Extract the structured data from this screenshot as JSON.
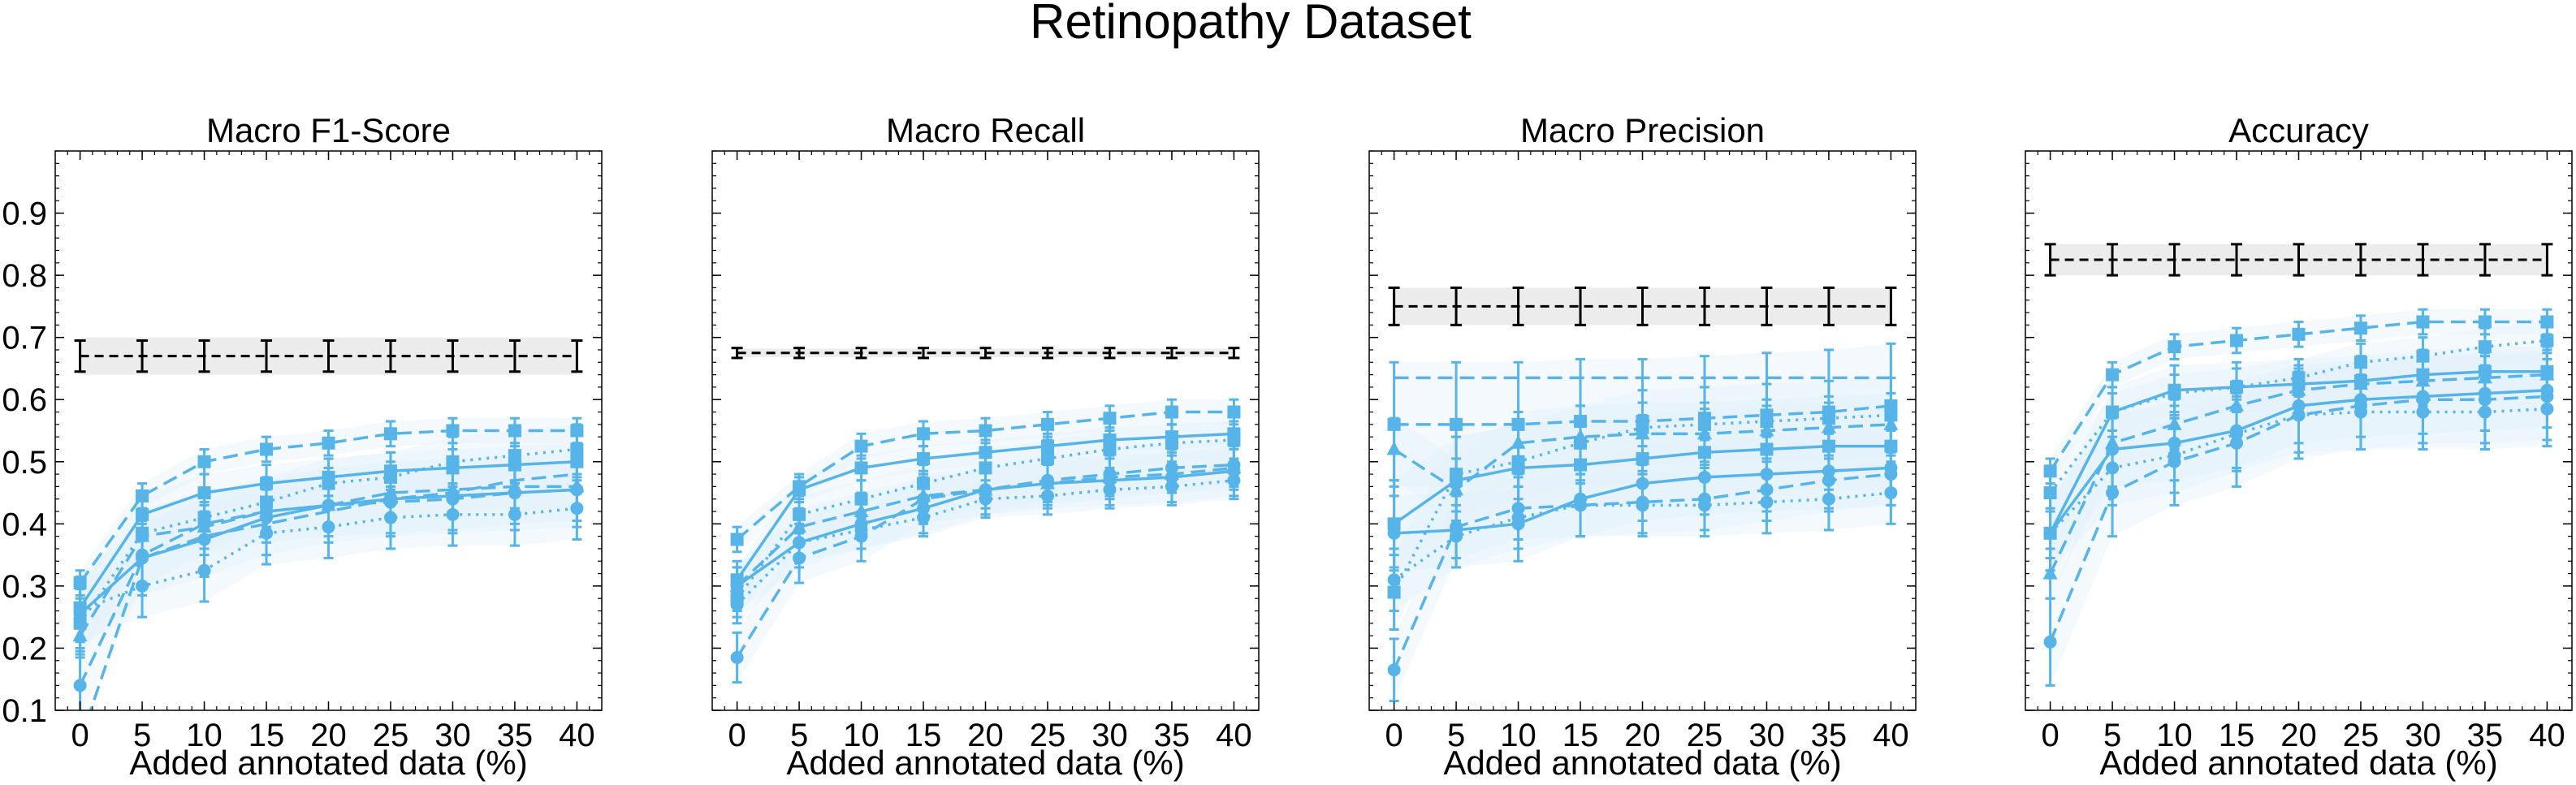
{
  "figure": {
    "title": "Retinopathy Dataset"
  },
  "colors": {
    "series": "#56b4e9",
    "band": "#e4f2fb",
    "reference": "#000000",
    "reference_band": "#ececec"
  },
  "chart_data": [
    {
      "type": "line",
      "title": "Macro F1-Score",
      "xlabel": "Added annotated data (%)",
      "ylabel": "",
      "x": [
        0,
        5,
        10,
        15,
        20,
        25,
        30,
        35,
        40
      ],
      "xlim": [
        -2,
        42
      ],
      "ylim": [
        0.1,
        1.0
      ],
      "yticks": [
        "0.1",
        "0.2",
        "0.3",
        "0.4",
        "0.5",
        "0.6",
        "0.7",
        "0.8",
        "0.9"
      ],
      "xticks": [
        "0",
        "5",
        "10",
        "15",
        "20",
        "25",
        "30",
        "35",
        "40"
      ],
      "reference": {
        "values": [
          0.67,
          0.67,
          0.67,
          0.67,
          0.67,
          0.67,
          0.67,
          0.67,
          0.67
        ],
        "err": 0.025,
        "band": [
          0.64,
          0.7
        ]
      },
      "series": [
        {
          "style": "dashed",
          "marker": "square",
          "values": [
            0.305,
            0.445,
            0.5,
            0.52,
            0.53,
            0.545,
            0.55,
            0.55,
            0.55
          ],
          "err": 0.02
        },
        {
          "style": "solid",
          "marker": "square",
          "values": [
            0.265,
            0.415,
            0.45,
            0.465,
            0.475,
            0.485,
            0.49,
            0.495,
            0.5
          ],
          "err": 0.03
        },
        {
          "style": "dotted",
          "marker": "square",
          "values": [
            0.24,
            0.385,
            0.41,
            0.435,
            0.465,
            0.475,
            0.5,
            0.51,
            0.52
          ],
          "err": 0.04
        },
        {
          "style": "dashed",
          "marker": "triangle",
          "values": [
            0.22,
            0.38,
            0.395,
            0.42,
            0.43,
            0.45,
            0.455,
            0.46,
            0.46
          ],
          "err": 0.035
        },
        {
          "style": "solid",
          "marker": "circle",
          "values": [
            0.255,
            0.345,
            0.375,
            0.41,
            0.43,
            0.44,
            0.445,
            0.45,
            0.455
          ],
          "err": 0.06
        },
        {
          "style": "dashed",
          "marker": "circle",
          "values": [
            0.14,
            0.35,
            0.4,
            0.42,
            0.43,
            0.435,
            0.44,
            0.45,
            0.455
          ],
          "err": 0.05
        },
        {
          "style": "dotted",
          "marker": "circle",
          "values": [
            0.26,
            0.3,
            0.325,
            0.385,
            0.395,
            0.41,
            0.415,
            0.415,
            0.425
          ],
          "err": 0.05
        },
        {
          "style": "dashed",
          "marker": "none",
          "values": [
            0.05,
            0.345,
            0.38,
            0.4,
            0.42,
            0.44,
            0.45,
            0.47,
            0.48
          ],
          "err": 0.0
        }
      ]
    },
    {
      "type": "line",
      "title": "Macro Recall",
      "xlabel": "Added annotated data (%)",
      "ylabel": "",
      "x": [
        0,
        5,
        10,
        15,
        20,
        25,
        30,
        35,
        40
      ],
      "xlim": [
        -2,
        42
      ],
      "ylim": [
        0.1,
        1.0
      ],
      "yticks": [],
      "xticks": [
        "0",
        "5",
        "10",
        "15",
        "20",
        "25",
        "30",
        "35",
        "40"
      ],
      "reference": {
        "values": [
          0.675,
          0.675,
          0.675,
          0.675,
          0.675,
          0.675,
          0.675,
          0.675,
          0.675
        ],
        "err": 0.008,
        "band": [
          0.668,
          0.682
        ]
      },
      "series": [
        {
          "style": "dashed",
          "marker": "square",
          "values": [
            0.375,
            0.46,
            0.525,
            0.545,
            0.55,
            0.56,
            0.57,
            0.58,
            0.58
          ],
          "err": 0.02
        },
        {
          "style": "solid",
          "marker": "square",
          "values": [
            0.31,
            0.455,
            0.49,
            0.505,
            0.515,
            0.525,
            0.535,
            0.54,
            0.545
          ],
          "err": 0.02
        },
        {
          "style": "dotted",
          "marker": "square",
          "values": [
            0.28,
            0.415,
            0.44,
            0.465,
            0.49,
            0.505,
            0.52,
            0.53,
            0.535
          ],
          "err": 0.03
        },
        {
          "style": "dashed",
          "marker": "triangle",
          "values": [
            0.3,
            0.395,
            0.42,
            0.445,
            0.455,
            0.465,
            0.475,
            0.48,
            0.49
          ],
          "err": 0.03
        },
        {
          "style": "solid",
          "marker": "circle",
          "values": [
            0.3,
            0.37,
            0.4,
            0.425,
            0.455,
            0.465,
            0.47,
            0.475,
            0.485
          ],
          "err": 0.04
        },
        {
          "style": "dashed",
          "marker": "circle",
          "values": [
            0.185,
            0.345,
            0.38,
            0.44,
            0.455,
            0.47,
            0.48,
            0.49,
            0.495
          ],
          "err": 0.04
        },
        {
          "style": "dotted",
          "marker": "circle",
          "values": [
            0.27,
            0.37,
            0.39,
            0.41,
            0.44,
            0.445,
            0.455,
            0.46,
            0.47
          ],
          "err": 0.03
        }
      ]
    },
    {
      "type": "line",
      "title": "Macro Precision",
      "xlabel": "Added annotated data (%)",
      "ylabel": "",
      "x": [
        0,
        5,
        10,
        15,
        20,
        25,
        30,
        35,
        40
      ],
      "xlim": [
        -2,
        42
      ],
      "ylim": [
        0.1,
        1.0
      ],
      "yticks": [],
      "xticks": [
        "0",
        "5",
        "10",
        "15",
        "20",
        "25",
        "30",
        "35",
        "40"
      ],
      "reference": {
        "values": [
          0.75,
          0.75,
          0.75,
          0.75,
          0.75,
          0.75,
          0.75,
          0.75,
          0.75
        ],
        "err": 0.03,
        "band": [
          0.72,
          0.78
        ]
      },
      "series": [
        {
          "style": "dashed",
          "marker": "square",
          "values": [
            0.56,
            0.56,
            0.56,
            0.565,
            0.565,
            0.57,
            0.575,
            0.58,
            0.59
          ],
          "err": 0.1
        },
        {
          "style": "dashed",
          "marker": "none",
          "values": [
            0.635,
            0.635,
            0.635,
            0.635,
            0.635,
            0.635,
            0.635,
            0.635,
            0.635
          ],
          "err": 0.0
        },
        {
          "style": "solid",
          "marker": "square",
          "values": [
            0.4,
            0.47,
            0.49,
            0.495,
            0.505,
            0.515,
            0.52,
            0.525,
            0.525
          ],
          "err": 0.07
        },
        {
          "style": "dotted",
          "marker": "square",
          "values": [
            0.29,
            0.48,
            0.5,
            0.53,
            0.555,
            0.56,
            0.565,
            0.57,
            0.575
          ],
          "err": 0.06
        },
        {
          "style": "dashed",
          "marker": "triangle",
          "values": [
            0.52,
            0.455,
            0.53,
            0.54,
            0.545,
            0.545,
            0.55,
            0.555,
            0.56
          ],
          "err": 0.05
        },
        {
          "style": "solid",
          "marker": "circle",
          "values": [
            0.385,
            0.39,
            0.4,
            0.44,
            0.465,
            0.475,
            0.48,
            0.485,
            0.49
          ],
          "err": 0.06
        },
        {
          "style": "dashed",
          "marker": "circle",
          "values": [
            0.165,
            0.395,
            0.425,
            0.43,
            0.435,
            0.44,
            0.455,
            0.47,
            0.48
          ],
          "err": 0.05
        },
        {
          "style": "dotted",
          "marker": "circle",
          "values": [
            0.31,
            0.38,
            0.41,
            0.43,
            0.43,
            0.43,
            0.435,
            0.44,
            0.45
          ],
          "err": 0.05
        }
      ]
    },
    {
      "type": "line",
      "title": "Accuracy",
      "xlabel": "Added annotated data (%)",
      "ylabel": "",
      "x": [
        0,
        5,
        10,
        15,
        20,
        25,
        30,
        35,
        40
      ],
      "xlim": [
        -2,
        42
      ],
      "ylim": [
        0.1,
        1.0
      ],
      "yticks": [],
      "xticks": [
        "0",
        "5",
        "10",
        "15",
        "20",
        "25",
        "30",
        "35",
        "40"
      ],
      "reference": {
        "values": [
          0.825,
          0.825,
          0.825,
          0.825,
          0.825,
          0.825,
          0.825,
          0.825,
          0.825
        ],
        "err": 0.025,
        "band": [
          0.8,
          0.85
        ]
      },
      "series": [
        {
          "style": "dashed",
          "marker": "square",
          "values": [
            0.485,
            0.64,
            0.685,
            0.695,
            0.705,
            0.715,
            0.725,
            0.725,
            0.725
          ],
          "err": 0.02
        },
        {
          "style": "dotted",
          "marker": "square",
          "values": [
            0.45,
            0.58,
            0.61,
            0.62,
            0.635,
            0.66,
            0.67,
            0.685,
            0.695
          ],
          "err": 0.03
        },
        {
          "style": "solid",
          "marker": "square",
          "values": [
            0.385,
            0.58,
            0.615,
            0.62,
            0.625,
            0.63,
            0.64,
            0.645,
            0.645
          ],
          "err": 0.04
        },
        {
          "style": "dashed",
          "marker": "triangle",
          "values": [
            0.32,
            0.53,
            0.56,
            0.59,
            0.615,
            0.625,
            0.63,
            0.635,
            0.64
          ],
          "err": 0.04
        },
        {
          "style": "solid",
          "marker": "circle",
          "values": [
            0.385,
            0.52,
            0.53,
            0.55,
            0.59,
            0.6,
            0.605,
            0.61,
            0.615
          ],
          "err": 0.06
        },
        {
          "style": "dashed",
          "marker": "circle",
          "values": [
            0.21,
            0.45,
            0.5,
            0.53,
            0.575,
            0.59,
            0.6,
            0.6,
            0.605
          ],
          "err": 0.07
        },
        {
          "style": "dotted",
          "marker": "circle",
          "values": [
            0.385,
            0.49,
            0.51,
            0.545,
            0.575,
            0.58,
            0.58,
            0.58,
            0.585
          ],
          "err": 0.06
        }
      ]
    }
  ]
}
